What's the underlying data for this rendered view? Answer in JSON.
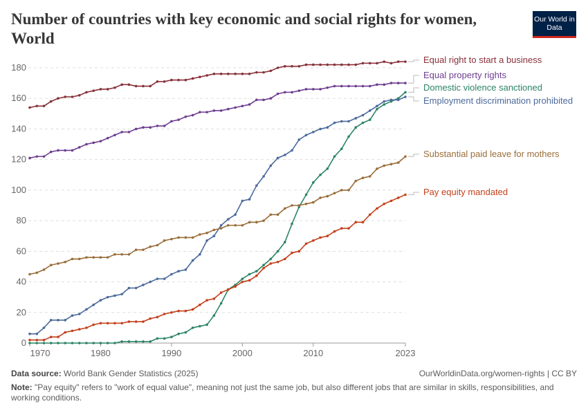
{
  "header": {
    "title": "Number of countries with key economic and social rights for women, World",
    "logo_text": "Our World in Data"
  },
  "footer": {
    "source_label": "Data source:",
    "source": "World Bank Gender Statistics (2025)",
    "url": "OurWorldinData.org/women-rights | CC BY",
    "note_label": "Note:",
    "note": "\"Pay equity\" refers to \"work of equal value\", meaning not just the same job, but also different jobs that are similar in skills, responsibilities, and working conditions."
  },
  "chart_data": {
    "type": "line",
    "title": "Number of countries with key economic and social rights for women, World",
    "x_start": 1970,
    "x_end": 2023,
    "xlim": [
      1970,
      2023
    ],
    "ylim": [
      0,
      180
    ],
    "x_ticks": [
      "1970",
      "1980",
      "1990",
      "2000",
      "2010",
      "2023"
    ],
    "y_ticks": [
      "0",
      "20",
      "40",
      "60",
      "80",
      "100",
      "120",
      "140",
      "160",
      "180"
    ],
    "grid": "horizontal dashed",
    "legend": "right (line end labels)",
    "series": [
      {
        "name": "Equal right to start a business",
        "color": "#883039",
        "values": [
          154,
          155,
          155,
          158,
          160,
          161,
          161,
          162,
          164,
          165,
          166,
          166,
          167,
          169,
          169,
          168,
          168,
          168,
          171,
          171,
          172,
          172,
          172,
          173,
          174,
          175,
          176,
          176,
          176,
          176,
          176,
          176,
          177,
          177,
          178,
          180,
          181,
          181,
          181,
          182,
          182,
          182,
          182,
          182,
          182,
          182,
          182,
          183,
          183,
          183,
          184,
          183,
          184,
          184
        ]
      },
      {
        "name": "Equal property rights",
        "color": "#6d3e91",
        "values": [
          121,
          122,
          122,
          125,
          126,
          126,
          126,
          128,
          130,
          131,
          132,
          134,
          136,
          138,
          138,
          140,
          141,
          141,
          142,
          142,
          145,
          146,
          148,
          149,
          151,
          151,
          152,
          152,
          153,
          154,
          155,
          156,
          159,
          159,
          160,
          163,
          164,
          164,
          165,
          166,
          166,
          166,
          167,
          168,
          168,
          168,
          168,
          168,
          168,
          169,
          169,
          170,
          170,
          170
        ]
      },
      {
        "name": "Domestic violence sanctioned",
        "color": "#2c8465",
        "values": [
          0,
          0,
          0,
          0,
          0,
          0,
          0,
          0,
          0,
          0,
          0,
          0,
          0,
          1,
          1,
          1,
          1,
          1,
          3,
          3,
          4,
          6,
          7,
          10,
          11,
          12,
          18,
          26,
          35,
          38,
          42,
          45,
          47,
          51,
          55,
          60,
          66,
          78,
          89,
          97,
          105,
          110,
          114,
          122,
          127,
          135,
          141,
          144,
          146,
          153,
          156,
          158,
          160,
          164
        ]
      },
      {
        "name": "Employment discrimination prohibited",
        "color": "#4c6a9c",
        "values": [
          6,
          6,
          10,
          15,
          15,
          15,
          18,
          19,
          22,
          25,
          28,
          30,
          31,
          32,
          36,
          36,
          38,
          40,
          42,
          42,
          45,
          47,
          48,
          54,
          58,
          67,
          70,
          77,
          81,
          84,
          93,
          94,
          103,
          109,
          116,
          121,
          123,
          126,
          133,
          136,
          138,
          140,
          141,
          144,
          145,
          145,
          147,
          149,
          152,
          155,
          158,
          159,
          159,
          161
        ]
      },
      {
        "name": "Substantial paid leave for mothers",
        "color": "#996d39",
        "values": [
          45,
          46,
          48,
          51,
          52,
          53,
          55,
          55,
          56,
          56,
          56,
          56,
          58,
          58,
          58,
          61,
          61,
          63,
          64,
          67,
          68,
          69,
          69,
          69,
          71,
          72,
          74,
          75,
          77,
          77,
          77,
          79,
          79,
          80,
          84,
          84,
          88,
          90,
          90,
          91,
          92,
          95,
          96,
          98,
          100,
          100,
          106,
          108,
          109,
          114,
          116,
          117,
          118,
          122
        ]
      },
      {
        "name": "Pay equity mandated",
        "color": "#c4401b",
        "values": [
          2,
          2,
          2,
          4,
          4,
          7,
          8,
          9,
          10,
          12,
          13,
          13,
          13,
          13,
          14,
          14,
          14,
          16,
          17,
          19,
          20,
          21,
          21,
          22,
          25,
          28,
          29,
          33,
          35,
          37,
          40,
          41,
          44,
          49,
          52,
          53,
          55,
          59,
          60,
          65,
          67,
          69,
          70,
          73,
          75,
          75,
          79,
          79,
          84,
          88,
          91,
          93,
          95,
          97
        ]
      }
    ]
  }
}
